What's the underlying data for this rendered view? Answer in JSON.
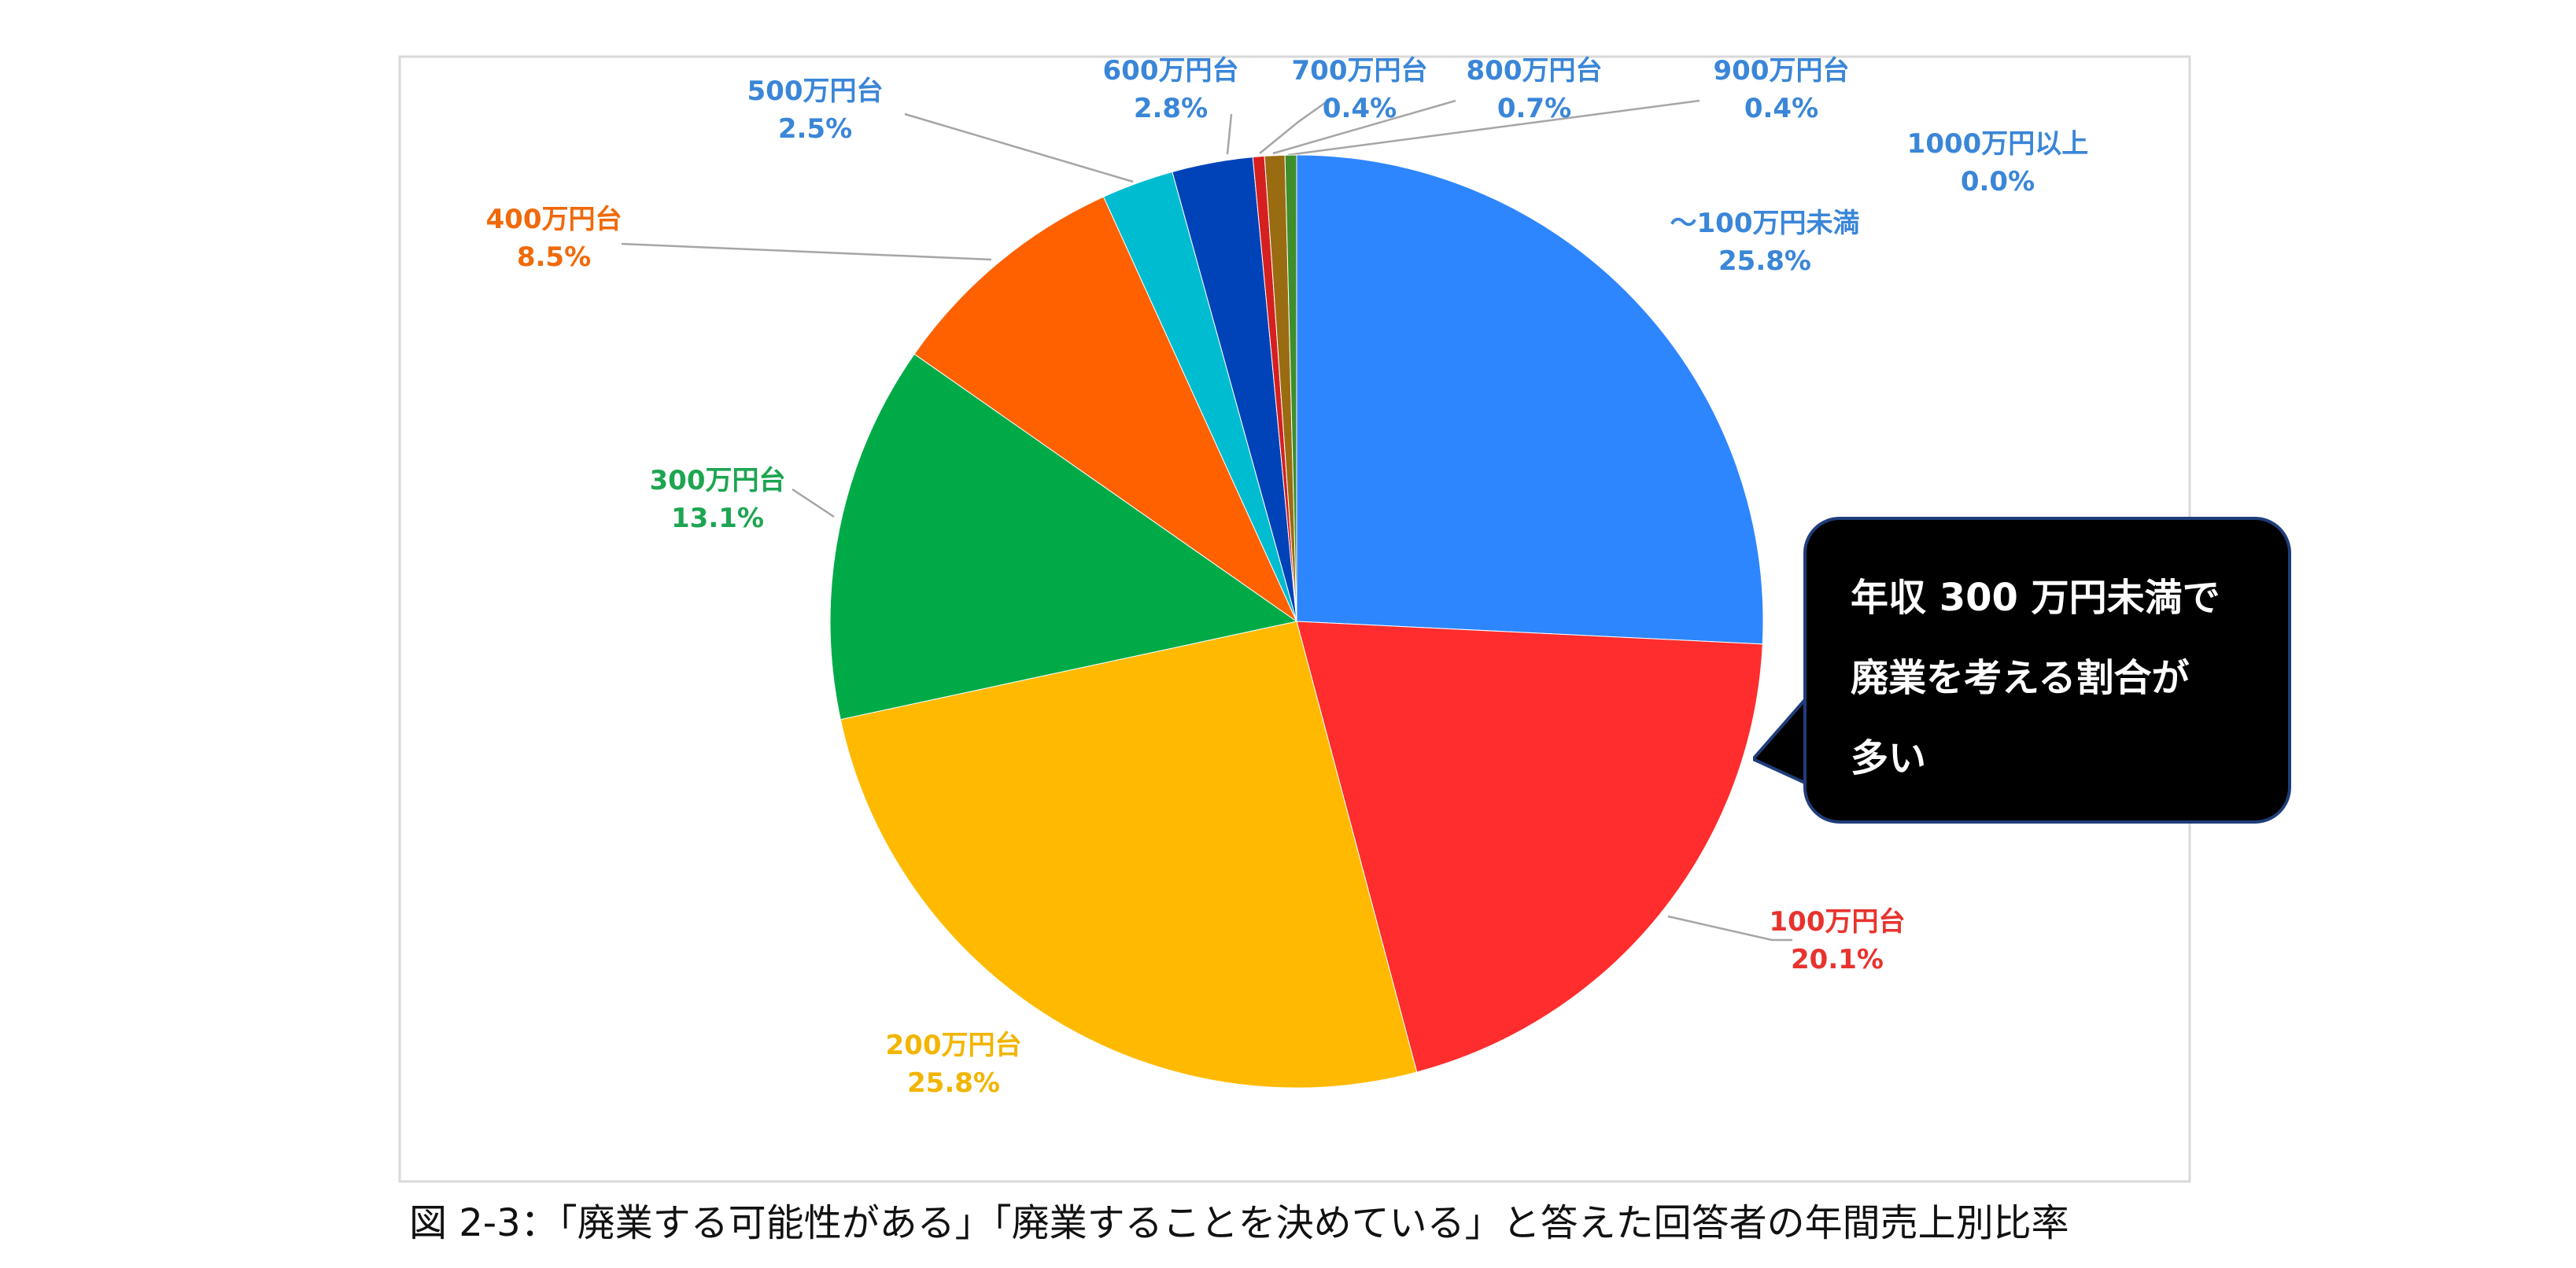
{
  "chart_data": {
    "type": "pie",
    "categories": [
      "〜100万円未満",
      "100万円台",
      "200万円台",
      "300万円台",
      "400万円台",
      "500万円台",
      "600万円台",
      "700万円台",
      "800万円台",
      "900万円台",
      "1000万円以上"
    ],
    "values": [
      25.8,
      20.1,
      25.8,
      13.1,
      8.5,
      2.5,
      2.8,
      0.4,
      0.7,
      0.4,
      0.0
    ],
    "value_labels": [
      "25.8%",
      "20.1%",
      "25.8%",
      "13.1%",
      "8.5%",
      "2.5%",
      "2.8%",
      "0.4%",
      "0.7%",
      "0.4%",
      "0.0%"
    ],
    "slice_colors": [
      "#2E86FF",
      "#FF2D2D",
      "#FFBA00",
      "#00AB47",
      "#FF6100",
      "#00BCD0",
      "#0043B8",
      "#D61F1F",
      "#9A6C12",
      "#3E8E2C",
      "#1E7A3A"
    ],
    "label_colors": [
      "#3A86D8",
      "#E8332E",
      "#F2B500",
      "#1EA552",
      "#F06A0A",
      "#3A86D8",
      "#3A86D8",
      "#3A86D8",
      "#3A86D8",
      "#3A86D8",
      "#3A86D8"
    ],
    "start_angle_deg": 0,
    "direction": "clockwise"
  },
  "callout": {
    "lines": [
      "年収 300 万円未満で",
      "廃業を考える割合が",
      "多い"
    ]
  },
  "caption": "図 2-3：「廃業する可能性がある」「廃業することを決めている」と答えた回答者の年間売上別比率"
}
